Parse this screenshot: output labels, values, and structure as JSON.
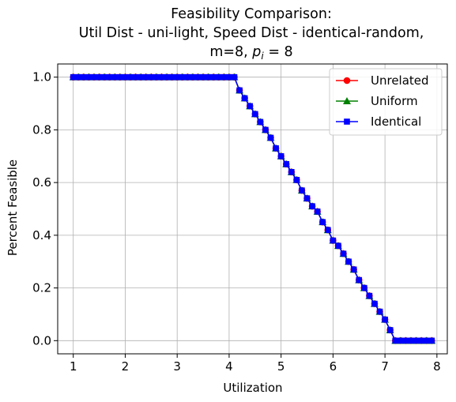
{
  "chart_data": {
    "type": "line",
    "title_lines": [
      "Feasibility Comparison:",
      "Util Dist - uni-light, Speed Dist - identical-random,"
    ],
    "title_line3_prefix": "m=8, ",
    "title_line3_var": "p",
    "title_line3_sub": "i",
    "title_line3_suffix": " = 8",
    "xlabel": "Utilization",
    "ylabel": "Percent Feasible",
    "xlim": [
      0.7,
      8.2
    ],
    "ylim": [
      -0.05,
      1.05
    ],
    "xticks": [
      1,
      2,
      3,
      4,
      5,
      6,
      7,
      8
    ],
    "yticks": [
      "0.0",
      "0.2",
      "0.4",
      "0.6",
      "0.8",
      "1.0"
    ],
    "grid": true,
    "legend_position": "top-right",
    "x": [
      1.0,
      1.1,
      1.2,
      1.3,
      1.4,
      1.5,
      1.6,
      1.7,
      1.8,
      1.9,
      2.0,
      2.1,
      2.2,
      2.3,
      2.4,
      2.5,
      2.6,
      2.7,
      2.8,
      2.9,
      3.0,
      3.1,
      3.2,
      3.3,
      3.4,
      3.5,
      3.6,
      3.7,
      3.8,
      3.9,
      4.0,
      4.1,
      4.2,
      4.3,
      4.4,
      4.5,
      4.6,
      4.7,
      4.8,
      4.9,
      5.0,
      5.1,
      5.2,
      5.3,
      5.4,
      5.5,
      5.6,
      5.7,
      5.8,
      5.9,
      6.0,
      6.1,
      6.2,
      6.3,
      6.4,
      6.5,
      6.6,
      6.7,
      6.8,
      6.9,
      7.0,
      7.1,
      7.2,
      7.3,
      7.4,
      7.5,
      7.6,
      7.7,
      7.8,
      7.9
    ],
    "series": [
      {
        "name": "Unrelated",
        "color": "#ff0000",
        "marker": "circle",
        "values": [
          1,
          1,
          1,
          1,
          1,
          1,
          1,
          1,
          1,
          1,
          1,
          1,
          1,
          1,
          1,
          1,
          1,
          1,
          1,
          1,
          1,
          1,
          1,
          1,
          1,
          1,
          1,
          1,
          1,
          1,
          1,
          1,
          0.95,
          0.92,
          0.89,
          0.86,
          0.83,
          0.8,
          0.77,
          0.73,
          0.7,
          0.67,
          0.64,
          0.61,
          0.57,
          0.54,
          0.51,
          0.49,
          0.45,
          0.42,
          0.38,
          0.36,
          0.33,
          0.3,
          0.27,
          0.23,
          0.2,
          0.17,
          0.14,
          0.11,
          0.08,
          0.04,
          0,
          0,
          0,
          0,
          0,
          0,
          0,
          0
        ]
      },
      {
        "name": "Uniform",
        "color": "#008000",
        "marker": "triangle",
        "values": [
          1,
          1,
          1,
          1,
          1,
          1,
          1,
          1,
          1,
          1,
          1,
          1,
          1,
          1,
          1,
          1,
          1,
          1,
          1,
          1,
          1,
          1,
          1,
          1,
          1,
          1,
          1,
          1,
          1,
          1,
          1,
          1,
          0.95,
          0.92,
          0.89,
          0.86,
          0.83,
          0.8,
          0.77,
          0.73,
          0.7,
          0.67,
          0.64,
          0.61,
          0.57,
          0.54,
          0.51,
          0.49,
          0.45,
          0.42,
          0.38,
          0.36,
          0.33,
          0.3,
          0.27,
          0.23,
          0.2,
          0.17,
          0.14,
          0.11,
          0.08,
          0.04,
          0,
          0,
          0,
          0,
          0,
          0,
          0,
          0
        ]
      },
      {
        "name": "Identical",
        "color": "#0000ff",
        "marker": "square",
        "values": [
          1,
          1,
          1,
          1,
          1,
          1,
          1,
          1,
          1,
          1,
          1,
          1,
          1,
          1,
          1,
          1,
          1,
          1,
          1,
          1,
          1,
          1,
          1,
          1,
          1,
          1,
          1,
          1,
          1,
          1,
          1,
          1,
          0.95,
          0.92,
          0.89,
          0.86,
          0.83,
          0.8,
          0.77,
          0.73,
          0.7,
          0.67,
          0.64,
          0.61,
          0.57,
          0.54,
          0.51,
          0.49,
          0.45,
          0.42,
          0.38,
          0.36,
          0.33,
          0.3,
          0.27,
          0.23,
          0.2,
          0.17,
          0.14,
          0.11,
          0.08,
          0.04,
          0,
          0,
          0,
          0,
          0,
          0,
          0,
          0
        ]
      }
    ]
  }
}
